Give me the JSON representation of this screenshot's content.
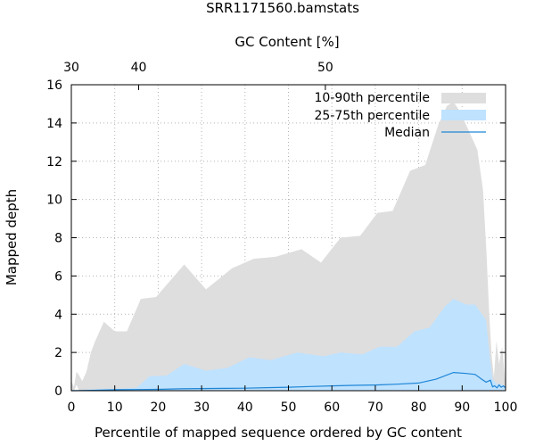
{
  "chart_data": {
    "type": "area",
    "title": "SRR1171560.bamstats",
    "xlabel": "Percentile of mapped sequence ordered by GC content",
    "ylabel": "Mapped depth",
    "x2label": "GC Content [%]",
    "xlim": [
      0,
      100
    ],
    "ylim": [
      0,
      16
    ],
    "x_ticks": [
      "0",
      "10",
      "20",
      "30",
      "40",
      "50",
      "60",
      "70",
      "80",
      "90",
      "100"
    ],
    "y_ticks": [
      "0",
      "2",
      "4",
      "6",
      "8",
      "10",
      "12",
      "14",
      "16"
    ],
    "x2_ticks": [
      {
        "label": "30",
        "x": 0
      },
      {
        "label": "40",
        "x": 15.5
      },
      {
        "label": "50",
        "x": 58.5
      }
    ],
    "grid": true,
    "legend_position": "top-right",
    "series": [
      {
        "name": "10-90th percentile",
        "color": "#dedede",
        "x": [
          0,
          0.6,
          1.2,
          1.8,
          2.5,
          3.5,
          4.5,
          5.5,
          7.5,
          10,
          12.8,
          16,
          19.5,
          26,
          31,
          37,
          42,
          47,
          53,
          57.5,
          62,
          66.5,
          70.5,
          74,
          78,
          81.5,
          84.5,
          86.5,
          88,
          89.5,
          91.5,
          93.5,
          94.8,
          95.6,
          96.2,
          96.8,
          97.3,
          97.9,
          98.5,
          99.2,
          100
        ],
        "low": [
          0,
          0,
          0.3,
          0,
          0,
          0,
          0,
          0,
          0,
          0,
          0,
          0,
          0,
          0,
          0,
          0,
          0,
          0,
          0,
          0,
          0,
          0,
          0,
          0,
          0,
          0,
          0,
          0,
          0,
          0,
          0,
          0,
          0,
          0,
          0,
          0,
          0,
          0,
          0,
          0,
          0
        ],
        "high": [
          0.5,
          0.2,
          1.0,
          0.8,
          0.5,
          1.0,
          2.0,
          2.6,
          3.6,
          3.1,
          3.1,
          4.8,
          4.9,
          6.6,
          5.3,
          6.4,
          6.9,
          7.0,
          7.4,
          6.7,
          8.0,
          8.1,
          9.3,
          9.4,
          11.5,
          11.8,
          13.9,
          14.9,
          15.1,
          14.6,
          13.6,
          12.6,
          10.5,
          7.2,
          4.2,
          1.8,
          0.7,
          2.6,
          1.4,
          2.3,
          0.3
        ]
      },
      {
        "name": "25-75th percentile",
        "color": "#bfe2ff",
        "x": [
          0,
          3,
          7,
          11,
          15,
          18,
          22,
          26,
          31,
          36,
          41,
          46,
          52,
          58,
          62,
          67,
          71,
          75,
          79,
          82.5,
          86,
          88,
          91,
          93,
          95.5,
          96.5,
          97,
          98,
          99,
          100
        ],
        "low": [
          0,
          0,
          0,
          0,
          0,
          0,
          0,
          0,
          0,
          0,
          0,
          0,
          0,
          0,
          0,
          0,
          0,
          0,
          0,
          0,
          0,
          0,
          0,
          0,
          0,
          0,
          0,
          0,
          0,
          0
        ],
        "high": [
          0.0,
          0.05,
          0.1,
          0.1,
          0.15,
          0.75,
          0.8,
          1.4,
          1.05,
          1.2,
          1.75,
          1.6,
          2.0,
          1.8,
          2.0,
          1.9,
          2.3,
          2.3,
          3.1,
          3.3,
          4.4,
          4.8,
          4.5,
          4.5,
          3.7,
          1.5,
          0.6,
          0.35,
          0.35,
          0.2
        ]
      },
      {
        "name": "Median",
        "color": "#1e86d6",
        "x": [
          0,
          5,
          10,
          15,
          20,
          25,
          30,
          35,
          40,
          45,
          50,
          55,
          60,
          65,
          70,
          75,
          80,
          84,
          88,
          91,
          93,
          94.5,
          95.5,
          96.5,
          97,
          97.5,
          98,
          98.5,
          99,
          99.5,
          100
        ],
        "y": [
          0,
          0.02,
          0.05,
          0.06,
          0.07,
          0.1,
          0.11,
          0.12,
          0.13,
          0.16,
          0.18,
          0.22,
          0.25,
          0.28,
          0.3,
          0.34,
          0.4,
          0.6,
          0.95,
          0.9,
          0.85,
          0.6,
          0.45,
          0.55,
          0.2,
          0.25,
          0.15,
          0.3,
          0.18,
          0.25,
          0.15
        ]
      }
    ]
  }
}
